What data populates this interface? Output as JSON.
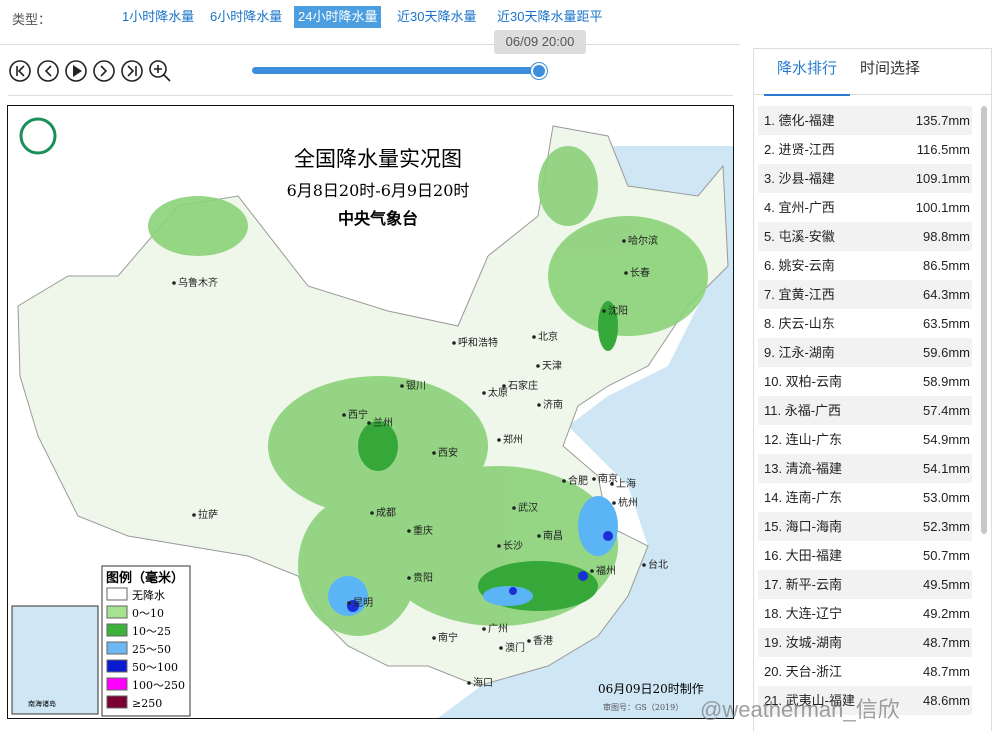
{
  "toolbar": {
    "type_label": "类型：",
    "tabs": [
      "1小时降水量",
      "6小时降水量",
      "24小时降水量",
      "近30天降水量",
      "近30天降水量距平"
    ],
    "active_tab": 2,
    "time_tooltip": "06/09 20:00"
  },
  "map": {
    "title": "全国降水量实况图",
    "period": "6月8日20时-6月9日20时",
    "issuer": "中央气象台",
    "cities": [
      "乌鲁木齐",
      "哈尔滨",
      "长春",
      "沈阳",
      "北京",
      "天津",
      "呼和浩特",
      "石家庄",
      "太原",
      "银川",
      "济南",
      "西宁",
      "兰州",
      "郑州",
      "西安",
      "合肥",
      "南京",
      "上海",
      "杭州",
      "武汉",
      "成都",
      "重庆",
      "拉萨",
      "长沙",
      "南昌",
      "福州",
      "台北",
      "贵阳",
      "昆明",
      "南宁",
      "广州",
      "香港",
      "澳门",
      "海口"
    ],
    "legend_title": "图例（毫米）",
    "legend": [
      "无降水",
      "0～10",
      "10～25",
      "25～50",
      "50～100",
      "100～250",
      "≥250"
    ],
    "made_time": "06月09日20时制作",
    "approval": "审图号：GS（2019）",
    "inset_label": "南海诸岛"
  },
  "panel": {
    "tabs": [
      "降水排行",
      "时间选择"
    ],
    "ranking": [
      [
        "1. 德化-福建",
        "135.7mm"
      ],
      [
        "2. 进贤-江西",
        "116.5mm"
      ],
      [
        "3. 沙县-福建",
        "109.1mm"
      ],
      [
        "4. 宜州-广西",
        "100.1mm"
      ],
      [
        "5. 屯溪-安徽",
        "98.8mm"
      ],
      [
        "6. 姚安-云南",
        "86.5mm"
      ],
      [
        "7. 宜黄-江西",
        "64.3mm"
      ],
      [
        "8. 庆云-山东",
        "63.5mm"
      ],
      [
        "9. 江永-湖南",
        "59.6mm"
      ],
      [
        "10. 双柏-云南",
        "58.9mm"
      ],
      [
        "11. 永福-广西",
        "57.4mm"
      ],
      [
        "12. 连山-广东",
        "54.9mm"
      ],
      [
        "13. 清流-福建",
        "54.1mm"
      ],
      [
        "14. 连南-广东",
        "53.0mm"
      ],
      [
        "15. 海口-海南",
        "52.3mm"
      ],
      [
        "16. 大田-福建",
        "50.7mm"
      ],
      [
        "17. 新平-云南",
        "49.5mm"
      ],
      [
        "18. 大连-辽宁",
        "49.2mm"
      ],
      [
        "19. 汝城-湖南",
        "48.7mm"
      ],
      [
        "20. 天台-浙江",
        "48.7mm"
      ],
      [
        "21. 武夷山-福建",
        "48.6mm"
      ]
    ]
  },
  "watermark": "@weatherman_信欣"
}
